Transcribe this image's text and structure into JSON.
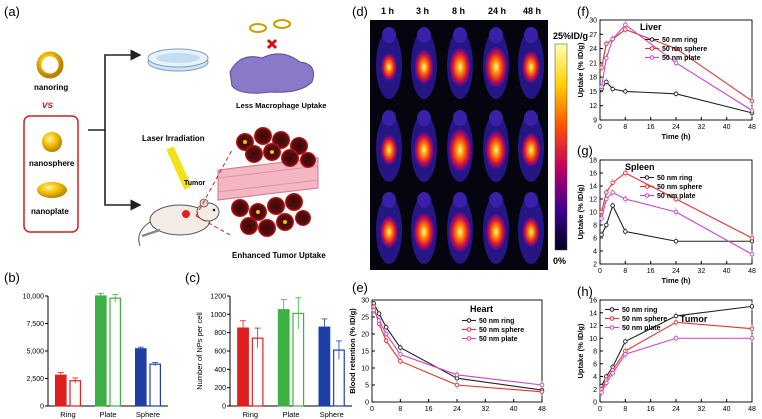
{
  "panel_labels": {
    "a": "(a)",
    "b": "(b)",
    "c": "(c)",
    "d": "(d)",
    "e": "(e)",
    "f": "(f)",
    "g": "(g)",
    "h": "(h)"
  },
  "schematic": {
    "nanoring": "nanoring",
    "vs": "vs",
    "nanosphere": "nanosphere",
    "nanoplate": "nanoplate",
    "less_macrophage": "Less Macrophage Uptake",
    "laser": "Laser Irradiation",
    "tumor": "Tumor",
    "enhanced": "Enhanced Tumor Uptake"
  },
  "imaging": {
    "times": [
      "1 h",
      "3 h",
      "8 h",
      "24 h",
      "48 h"
    ],
    "scale_max": "25%ID/g",
    "scale_min": "0%"
  },
  "chart_data": [
    {
      "id": "b",
      "type": "bar",
      "categories": [
        "Ring",
        "Plate",
        "Sphere"
      ],
      "series": [
        {
          "values": [
            2800,
            10000,
            5200
          ]
        },
        {
          "values": [
            2300,
            9800,
            3800
          ]
        }
      ],
      "errors": [
        [
          250,
          250
        ],
        [
          250,
          350
        ],
        [
          150,
          150
        ]
      ],
      "ylim": [
        0,
        10000
      ],
      "yticks": [
        "0",
        "2,500",
        "5,000",
        "7,500",
        "10,000"
      ],
      "colors": [
        "#e02020",
        "#3cb043",
        "#1f3fa8"
      ]
    },
    {
      "id": "c",
      "type": "bar",
      "categories": [
        "Ring",
        "Plate",
        "Sphere"
      ],
      "series": [
        {
          "values": [
            850,
            1050,
            860
          ]
        },
        {
          "values": [
            740,
            1010,
            610
          ]
        }
      ],
      "errors": [
        [
          80,
          110
        ],
        [
          110,
          170
        ],
        [
          90,
          100
        ]
      ],
      "ylim": [
        0,
        1200
      ],
      "ylabel": "Number of NPs per cell",
      "yticks": [
        "0",
        "200",
        "400",
        "600",
        "800",
        "1000",
        "1200"
      ],
      "colors": [
        "#e02020",
        "#3cb043",
        "#1f3fa8"
      ]
    },
    {
      "id": "e",
      "type": "line",
      "title": "Heart",
      "xlabel": "",
      "ylabel": "Blood retention (% ID/g)",
      "xlim": [
        0,
        48
      ],
      "ylim": [
        0,
        30
      ],
      "xticks": [
        "0",
        "8",
        "16",
        "24",
        "32",
        "40",
        "48"
      ],
      "yticks": [
        "0",
        "5",
        "10",
        "15",
        "20",
        "25",
        "30"
      ],
      "series": [
        {
          "name": "50 nm ring",
          "color": "#222222",
          "x": [
            0.5,
            2,
            4,
            8,
            24,
            48
          ],
          "y": [
            29,
            26,
            22,
            16,
            7,
            3.5
          ]
        },
        {
          "name": "50 nm sphere",
          "color": "#e83030",
          "x": [
            0.5,
            2,
            4,
            8,
            24,
            48
          ],
          "y": [
            28,
            23,
            18,
            12,
            5,
            3
          ]
        },
        {
          "name": "50 nm plate",
          "color": "#cc44cc",
          "x": [
            0.5,
            2,
            4,
            8,
            24,
            48
          ],
          "y": [
            27,
            24,
            20,
            14,
            8,
            5
          ]
        }
      ]
    },
    {
      "id": "f",
      "type": "line",
      "title": "Liver",
      "xlabel": "Time (h)",
      "ylabel": "Uptake (% ID/g)",
      "xlim": [
        0,
        48
      ],
      "ylim": [
        9,
        30
      ],
      "xticks": [
        "0",
        "8",
        "16",
        "24",
        "32",
        "40",
        "48"
      ],
      "yticks": [
        "9",
        "12",
        "15",
        "18",
        "21",
        "24",
        "27",
        "30"
      ],
      "series": [
        {
          "name": "50 nm ring",
          "color": "#222222",
          "x": [
            0.5,
            2,
            4,
            8,
            24,
            48
          ],
          "y": [
            15.5,
            17,
            15.5,
            15,
            14.5,
            10.5
          ]
        },
        {
          "name": "50 nm sphere",
          "color": "#e83030",
          "x": [
            0.5,
            2,
            4,
            8,
            24,
            48
          ],
          "y": [
            20,
            25,
            26,
            28,
            24,
            13
          ]
        },
        {
          "name": "50 nm plate",
          "color": "#cc44cc",
          "x": [
            0.5,
            2,
            4,
            8,
            24,
            48
          ],
          "y": [
            16,
            22,
            26,
            29,
            21,
            11
          ]
        }
      ]
    },
    {
      "id": "g",
      "type": "line",
      "title": "Spleen",
      "xlabel": "Time (h)",
      "ylabel": "Uptake (% ID/g)",
      "xlim": [
        0,
        48
      ],
      "ylim": [
        2,
        18
      ],
      "xticks": [
        "0",
        "8",
        "16",
        "24",
        "32",
        "40",
        "48"
      ],
      "yticks": [
        "2",
        "4",
        "6",
        "8",
        "10",
        "12",
        "14",
        "16",
        "18"
      ],
      "series": [
        {
          "name": "50 nm ring",
          "color": "#222222",
          "x": [
            0.5,
            2,
            4,
            8,
            24,
            48
          ],
          "y": [
            6.5,
            8,
            11,
            7,
            5.5,
            5.5
          ]
        },
        {
          "name": "50 nm sphere",
          "color": "#e83030",
          "x": [
            0.5,
            2,
            4,
            8,
            24,
            48
          ],
          "y": [
            10,
            13,
            14.5,
            16,
            12,
            6
          ]
        },
        {
          "name": "50 nm plate",
          "color": "#cc44cc",
          "x": [
            0.5,
            2,
            4,
            8,
            24,
            48
          ],
          "y": [
            9,
            12,
            13,
            12,
            10,
            3.5
          ]
        }
      ]
    },
    {
      "id": "h",
      "type": "line",
      "title": "Tumor",
      "xlabel": "",
      "ylabel": "Uptake (% ID/g)",
      "xlim": [
        0,
        48
      ],
      "ylim": [
        0,
        16
      ],
      "xticks": [
        "0",
        "8",
        "16",
        "24",
        "32",
        "40",
        "48"
      ],
      "yticks": [
        "0",
        "2",
        "4",
        "6",
        "8",
        "10",
        "12",
        "14",
        "16"
      ],
      "series": [
        {
          "name": "50 nm ring",
          "color": "#222222",
          "x": [
            0.5,
            2,
            4,
            8,
            24,
            48
          ],
          "y": [
            2.5,
            4,
            5.5,
            9.5,
            13.5,
            15
          ]
        },
        {
          "name": "50 nm sphere",
          "color": "#e83030",
          "x": [
            0.5,
            2,
            4,
            8,
            24,
            48
          ],
          "y": [
            2,
            3.5,
            5,
            8,
            12.5,
            11.5
          ]
        },
        {
          "name": "50 nm plate",
          "color": "#cc44cc",
          "x": [
            0.5,
            2,
            4,
            8,
            24,
            48
          ],
          "y": [
            1.5,
            3,
            4.5,
            7.5,
            10,
            10
          ]
        }
      ]
    }
  ]
}
